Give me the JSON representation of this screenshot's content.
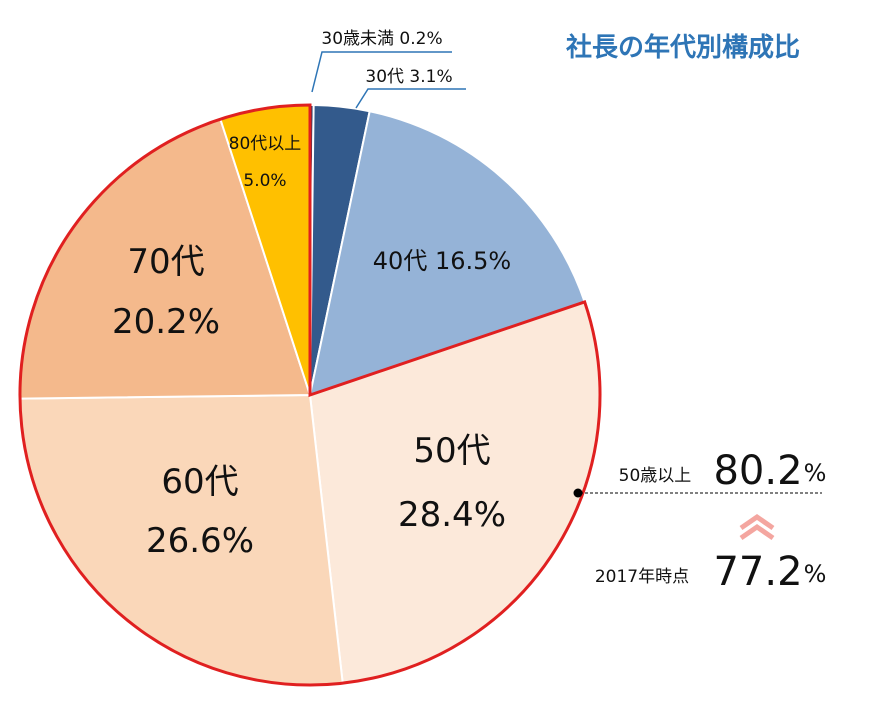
{
  "chart_data": {
    "type": "pie",
    "title": "社長の年代別構成比",
    "categories": [
      "30歳未満",
      "30代",
      "40代",
      "50代",
      "60代",
      "70代",
      "80代以上"
    ],
    "values": [
      0.2,
      3.1,
      16.5,
      28.4,
      26.6,
      20.2,
      5.0
    ],
    "unit": "%",
    "value_labels": [
      "0.2%",
      "3.1%",
      "16.5%",
      "28.4%",
      "26.6%",
      "20.2%",
      "5.0%"
    ],
    "colors": [
      "#1f3864",
      "#335a8c",
      "#95b3d7",
      "#fce9da",
      "#fad7b9",
      "#f4b98c",
      "#ffc000"
    ],
    "start_angle_deg": 0,
    "direction": "clockwise",
    "highlight_group": [
      "50代",
      "60代",
      "70代",
      "80代以上"
    ],
    "highlight_color": "#e02020"
  },
  "labels": {
    "under30_line": "30歳未満 0.2%",
    "s30_line": "30代 3.1%",
    "s40_line": "40代 16.5%",
    "s50_name": "50代",
    "s50_value": "28.4%",
    "s60_name": "60代",
    "s60_value": "26.6%",
    "s70_name": "70代",
    "s70_value": "20.2%",
    "s80_name": "80代以上",
    "s80_value": "5.0%"
  },
  "comparison": {
    "current_label": "50歳以上",
    "current_value": "80.2",
    "unit": "%",
    "past_label": "2017年時点",
    "past_value": "77.2",
    "arrow_color": "#f4a6a0"
  }
}
